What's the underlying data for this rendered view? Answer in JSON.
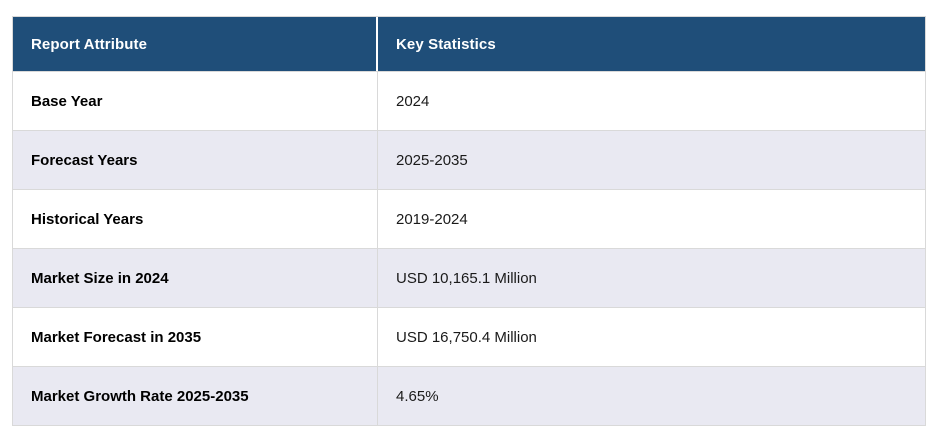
{
  "page": {
    "background": "#FFFFFF"
  },
  "table": {
    "columns": [
      {
        "label": "Report Attribute"
      },
      {
        "label": "Key Statistics"
      }
    ],
    "rows": [
      {
        "attribute": "Base Year",
        "value": "2024"
      },
      {
        "attribute": "Forecast Years",
        "value": "2025-2035"
      },
      {
        "attribute": "Historical Years",
        "value": "2019-2024"
      },
      {
        "attribute": "Market Size in 2024",
        "value": "USD 10,165.1 Million"
      },
      {
        "attribute": "Market Forecast in 2035",
        "value": "USD 16,750.4 Million"
      },
      {
        "attribute": "Market Growth Rate 2025-2035",
        "value": "4.65%"
      }
    ],
    "colors": {
      "header_bg": "#1F4E79",
      "header_text": "#FFFFFF",
      "row_bg": "#FFFFFF",
      "row_alt_bg": "#E9E9F2",
      "border": "#D9D9D9",
      "header_divider": "#FFFFFF"
    }
  },
  "chart_data": {
    "type": "table",
    "title": "",
    "columns": [
      "Report Attribute",
      "Key Statistics"
    ],
    "rows": [
      [
        "Base Year",
        "2024"
      ],
      [
        "Forecast Years",
        "2025-2035"
      ],
      [
        "Historical Years",
        "2019-2024"
      ],
      [
        "Market Size in 2024",
        "USD 10,165.1 Million"
      ],
      [
        "Market Forecast in 2035",
        "USD 16,750.4 Million"
      ],
      [
        "Market Growth Rate 2025-2035",
        "4.65%"
      ]
    ]
  }
}
